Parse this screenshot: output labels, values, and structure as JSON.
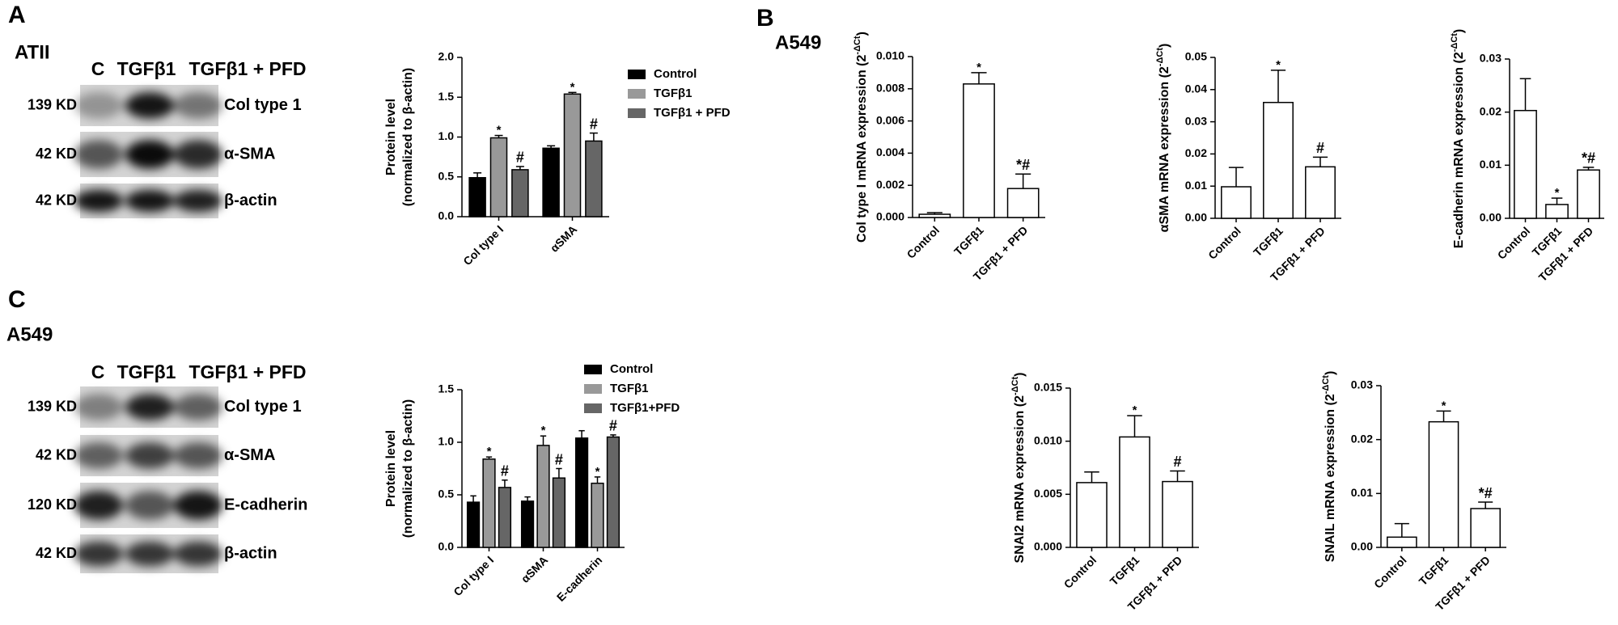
{
  "blots": [
    {
      "panel": "A",
      "cell_line": "ATII",
      "lanes": [
        "C",
        "TGFβ1",
        "TGFβ1 + PFD"
      ],
      "rows": [
        {
          "kd": "139 KD",
          "protein": "Col type 1"
        },
        {
          "kd": "42 KD",
          "protein": "α-SMA"
        },
        {
          "kd": "42 KD",
          "protein": "β-actin"
        }
      ]
    },
    {
      "panel": "C",
      "cell_line": "A549",
      "lanes": [
        "C",
        "TGFβ1",
        "TGFβ1 + PFD"
      ],
      "rows": [
        {
          "kd": "139 KD",
          "protein": "Col type 1"
        },
        {
          "kd": "42 KD",
          "protein": "α-SMA"
        },
        {
          "kd": "120 KD",
          "protein": "E-cadherin"
        },
        {
          "kd": "42 KD",
          "protein": "β-actin"
        }
      ]
    }
  ],
  "panel_B": {
    "panel": "B",
    "cell_line": "A549"
  },
  "chart_data": [
    {
      "type": "bar",
      "ylabel_lines": [
        "Protein level",
        "(normalized to β-actin)"
      ],
      "categories": [
        "Col type I",
        "αSMA"
      ],
      "series": [
        {
          "name": "Control",
          "color": "#000000",
          "values": [
            0.49,
            0.86
          ],
          "errors": [
            0.06,
            0.03
          ],
          "annotations": [
            null,
            null
          ]
        },
        {
          "name": "TGFβ1",
          "color": "#999999",
          "values": [
            0.99,
            1.54
          ],
          "errors": [
            0.03,
            0.02
          ],
          "annotations": [
            "*",
            "*"
          ]
        },
        {
          "name": "TGFβ1 + PFD",
          "color": "#666666",
          "values": [
            0.59,
            0.95
          ],
          "errors": [
            0.04,
            0.1
          ],
          "annotations": [
            "#",
            "#"
          ]
        }
      ],
      "ylim": [
        0,
        2
      ],
      "yticks": [
        {
          "value": 0,
          "label": "0.0"
        },
        0.5,
        {
          "value": 1,
          "label": "1.0"
        },
        1.5,
        {
          "value": 2,
          "label": "2.0"
        }
      ],
      "legend": "upper right"
    },
    {
      "type": "bar",
      "ylabel_parts": [
        "Col type I mRNA expression (2",
        "-ΔCt",
        ")"
      ],
      "categories": [
        "Control",
        "TGFβ1",
        "TGFβ1 + PFD"
      ],
      "color": "#ffffff",
      "values": [
        0.0002,
        0.0083,
        0.0018
      ],
      "errors": [
        0.0001,
        0.0007,
        0.0009
      ],
      "annotations": [
        null,
        "*",
        "*#"
      ],
      "ylim": [
        0,
        0.01
      ],
      "yticks": [
        {
          "value": 0,
          "label": "0.000"
        },
        0.002,
        0.004,
        0.006,
        0.008,
        {
          "value": 0.01,
          "label": "0.010"
        }
      ]
    },
    {
      "type": "bar",
      "ylabel_parts": [
        "αSMA mRNA expression (2",
        "-ΔCt",
        ")"
      ],
      "categories": [
        "Control",
        "TGFβ1",
        "TGFβ1 + PFD"
      ],
      "color": "#ffffff",
      "values": [
        0.0098,
        0.036,
        0.016
      ],
      "errors": [
        0.006,
        0.01,
        0.003
      ],
      "annotations": [
        null,
        "*",
        "#"
      ],
      "ylim": [
        0,
        0.05
      ],
      "yticks": [
        {
          "value": 0,
          "label": "0.00"
        },
        0.01,
        0.02,
        0.03,
        0.04,
        0.05
      ]
    },
    {
      "type": "bar",
      "ylabel_parts": [
        "E-cadherin mRNA expression (2",
        "-ΔCt",
        ")"
      ],
      "categories": [
        "Control",
        "TGFβ1",
        "TGFβ1 + PFD"
      ],
      "color": "#ffffff",
      "values": [
        0.0203,
        0.0026,
        0.0091
      ],
      "errors": [
        0.006,
        0.0012,
        0.0005
      ],
      "annotations": [
        null,
        "*",
        "*#"
      ],
      "ylim": [
        0,
        0.03
      ],
      "yticks": [
        {
          "value": 0,
          "label": "0.00"
        },
        0.01,
        0.02,
        0.03
      ]
    },
    {
      "type": "bar",
      "ylabel_lines": [
        "Protein level",
        "(normalized to β-actin)"
      ],
      "categories": [
        "Col type I",
        "αSMA",
        "E-cadherin"
      ],
      "series": [
        {
          "name": "Control",
          "color": "#000000",
          "values": [
            0.43,
            0.44,
            1.04
          ],
          "errors": [
            0.06,
            0.04,
            0.07
          ],
          "annotations": [
            null,
            null,
            null
          ]
        },
        {
          "name": "TGFβ1",
          "color": "#999999",
          "values": [
            0.84,
            0.97,
            0.61
          ],
          "errors": [
            0.02,
            0.09,
            0.06
          ],
          "annotations": [
            "*",
            "*",
            "*"
          ]
        },
        {
          "name": "TGFβ1+PFD",
          "color": "#666666",
          "values": [
            0.57,
            0.66,
            1.05
          ],
          "errors": [
            0.07,
            0.09,
            0.02
          ],
          "annotations": [
            "#",
            "#",
            "#"
          ]
        }
      ],
      "ylim": [
        0,
        1.5
      ],
      "yticks": [
        {
          "value": 0,
          "label": "0.0"
        },
        0.5,
        {
          "value": 1,
          "label": "1.0"
        },
        1.5
      ],
      "legend": "upper right"
    },
    {
      "type": "bar",
      "ylabel_parts": [
        "SNAI2 mRNA expression (2",
        "-ΔCt",
        ")"
      ],
      "categories": [
        "Control",
        "TGFβ1",
        "TGFβ1 + PFD"
      ],
      "color": "#ffffff",
      "values": [
        0.0061,
        0.0104,
        0.0062
      ],
      "errors": [
        0.001,
        0.002,
        0.001
      ],
      "annotations": [
        null,
        "*",
        "#"
      ],
      "ylim": [
        0,
        0.015
      ],
      "yticks": [
        {
          "value": 0,
          "label": "0.000"
        },
        0.005,
        {
          "value": 0.01,
          "label": "0.010"
        },
        0.015
      ]
    },
    {
      "type": "bar",
      "ylabel_parts": [
        "SNAIL mRNA expression (2",
        "-ΔCt",
        ")"
      ],
      "categories": [
        "Control",
        "TGFβ1",
        "TGFβ1 + PFD"
      ],
      "color": "#ffffff",
      "values": [
        0.0019,
        0.0233,
        0.0072
      ],
      "errors": [
        0.0025,
        0.002,
        0.0012
      ],
      "annotations": [
        null,
        "*",
        "*#"
      ],
      "ylim": [
        0,
        0.03
      ],
      "yticks": [
        {
          "value": 0,
          "label": "0.00"
        },
        0.01,
        0.02,
        0.03
      ]
    }
  ]
}
